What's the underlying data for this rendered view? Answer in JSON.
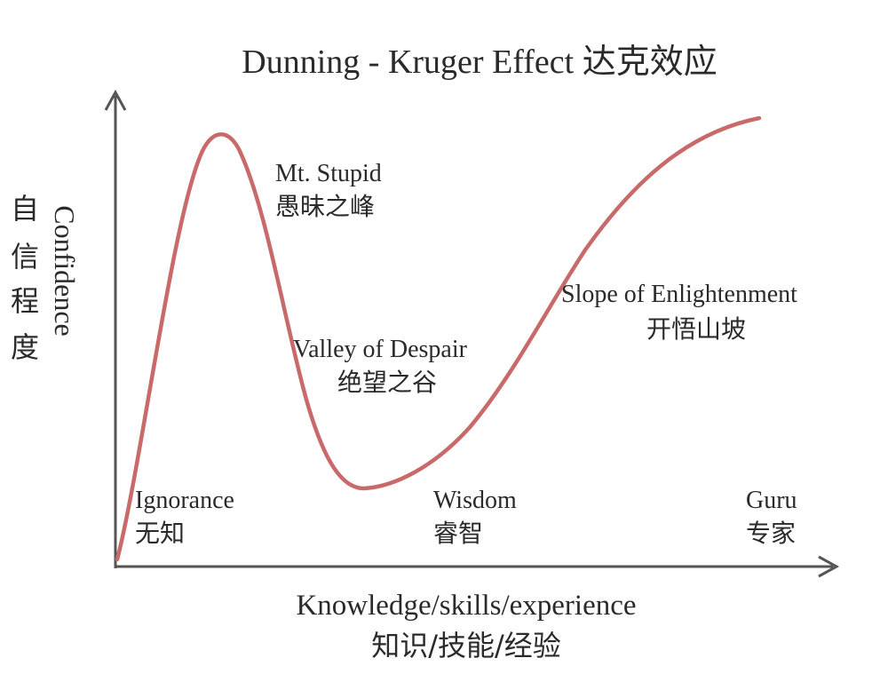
{
  "title": "Dunning - Kruger Effect 达克效应",
  "y_axis": {
    "label_en": "Confidence",
    "label_zh": [
      "自",
      "信",
      "程",
      "度"
    ]
  },
  "x_axis": {
    "label_en": "Knowledge/skills/experience",
    "label_zh": "知识/技能/经验"
  },
  "curve_color": "#c96a6a",
  "axis_color": "#555555",
  "annotations": {
    "mt_stupid": {
      "en": "Mt. Stupid",
      "zh": "愚昧之峰"
    },
    "valley": {
      "en": "Valley of Despair",
      "zh": "绝望之谷"
    },
    "slope": {
      "en": "Slope of Enlightenment",
      "zh": "开悟山坡"
    }
  },
  "stages": {
    "ignorance": {
      "en": "Ignorance",
      "zh": "无知"
    },
    "wisdom": {
      "en": "Wisdom",
      "zh": "睿智"
    },
    "guru": {
      "en": "Guru",
      "zh": "专家"
    }
  }
}
